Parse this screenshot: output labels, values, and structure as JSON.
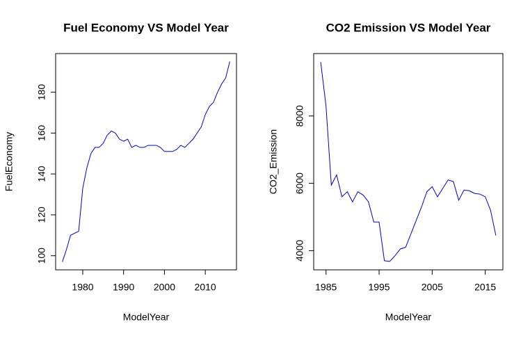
{
  "chart_data": [
    {
      "type": "line",
      "title": "Fuel Economy VS Model Year",
      "xlabel": "ModelYear",
      "ylabel": "FuelEconomy",
      "color": "#0000cc",
      "x": [
        1975,
        1976,
        1977,
        1978,
        1979,
        1980,
        1981,
        1982,
        1983,
        1984,
        1985,
        1986,
        1987,
        1988,
        1989,
        1990,
        1991,
        1992,
        1993,
        1994,
        1995,
        1996,
        1997,
        1998,
        1999,
        2000,
        2001,
        2002,
        2003,
        2004,
        2005,
        2006,
        2007,
        2008,
        2009,
        2010,
        2011,
        2012,
        2013,
        2014,
        2015,
        2016
      ],
      "values": [
        97,
        103,
        110,
        111,
        112,
        133,
        143,
        150,
        153,
        153,
        155,
        159,
        161,
        160,
        157,
        156,
        157,
        153,
        154,
        153,
        153,
        154,
        154,
        154,
        153,
        151,
        151,
        151,
        152,
        154,
        153,
        155,
        157,
        160,
        163,
        169,
        173,
        175,
        180,
        184,
        187,
        195
      ],
      "xlim": [
        1973.36,
        2017.64
      ],
      "xticks": [
        1980,
        1990,
        2000,
        2010
      ],
      "ylim": [
        93.1,
        198.9
      ],
      "yticks": [
        100,
        120,
        140,
        160,
        180
      ]
    },
    {
      "type": "line",
      "title": "CO2 Emission VS Model Year",
      "xlabel": "ModelYear",
      "ylabel": "CO2_Emission",
      "color": "#0000cc",
      "x": [
        1984,
        1985,
        1986,
        1987,
        1988,
        1989,
        1990,
        1991,
        1992,
        1993,
        1994,
        1995,
        1996,
        1997,
        1998,
        1999,
        2000,
        2001,
        2002,
        2003,
        2004,
        2005,
        2006,
        2007,
        2008,
        2009,
        2010,
        2011,
        2012,
        2013,
        2014,
        2015,
        2016,
        2017
      ],
      "values": [
        9600,
        8300,
        5950,
        6250,
        5600,
        5750,
        5450,
        5750,
        5650,
        5450,
        4850,
        4850,
        3700,
        3680,
        3850,
        4050,
        4100,
        4500,
        4900,
        5300,
        5750,
        5900,
        5600,
        5850,
        6100,
        6050,
        5500,
        5800,
        5780,
        5700,
        5680,
        5600,
        5200,
        4450
      ],
      "xlim": [
        1982.68,
        2018.32
      ],
      "xticks": [
        1985,
        1995,
        2005,
        2015
      ],
      "ylim": [
        3430,
        9855
      ],
      "yticks": [
        4000,
        6000,
        8000
      ]
    }
  ]
}
